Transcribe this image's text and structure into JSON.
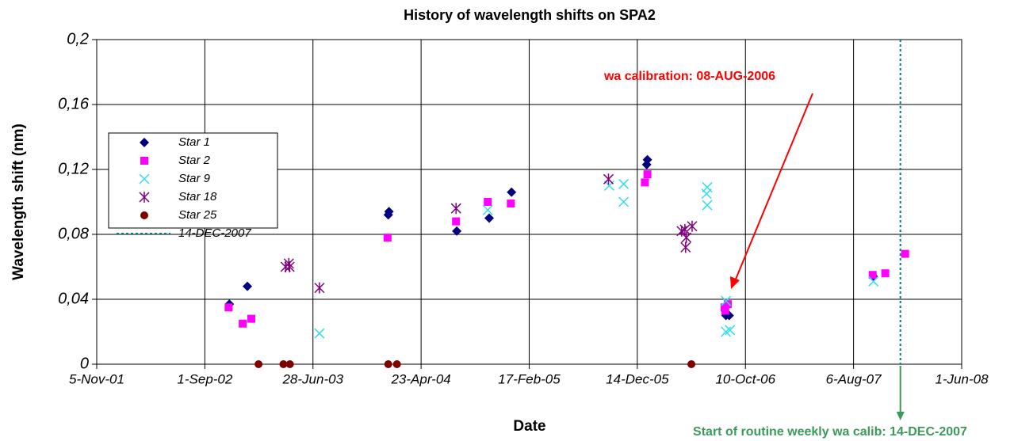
{
  "chart_data": {
    "type": "scatter",
    "title": "History of wavelength shifts on SPA2",
    "xlabel": "Date",
    "ylabel": "Wavelength shift (nm)",
    "xlim": [
      "2001-11-05",
      "2008-06-01"
    ],
    "xticks": [
      {
        "value": "2001-11-05",
        "label": "5-Nov-01"
      },
      {
        "value": "2002-09-01",
        "label": "1-Sep-02"
      },
      {
        "value": "2003-06-28",
        "label": "28-Jun-03"
      },
      {
        "value": "2004-04-23",
        "label": "23-Apr-04"
      },
      {
        "value": "2005-02-17",
        "label": "17-Feb-05"
      },
      {
        "value": "2005-12-14",
        "label": "14-Dec-05"
      },
      {
        "value": "2006-10-10",
        "label": "10-Oct-06"
      },
      {
        "value": "2007-08-06",
        "label": "6-Aug-07"
      },
      {
        "value": "2008-06-01",
        "label": "1-Jun-08"
      }
    ],
    "ylim": [
      0,
      0.2
    ],
    "yticks": [
      0,
      {
        "value": 0.04,
        "label": "0,04"
      },
      {
        "value": 0.08,
        "label": "0,08"
      },
      {
        "value": 0.12,
        "label": "0,12"
      },
      {
        "value": 0.16,
        "label": "0,16"
      },
      {
        "value": 0.2,
        "label": "0,2"
      }
    ],
    "grid": true,
    "legend": "upper left",
    "series": [
      {
        "name": "Star 1",
        "color": "#000080",
        "marker": "diamond",
        "x": [
          "2002-11-08",
          "2002-12-28",
          "2004-01-23",
          "2004-01-25",
          "2004-07-31",
          "2004-10-29",
          "2004-12-30",
          "2006-01-09",
          "2006-01-11",
          "2006-08-17",
          "2006-08-26",
          "2007-09-30"
        ],
        "values": [
          0.037,
          0.048,
          0.092,
          0.094,
          0.082,
          0.09,
          0.106,
          0.123,
          0.126,
          0.03,
          0.03,
          0.054
        ]
      },
      {
        "name": "Star 2",
        "color": "#ff00ff",
        "marker": "square",
        "x": [
          "2002-11-06",
          "2002-12-15",
          "2003-01-08",
          "2004-01-21",
          "2004-07-29",
          "2004-10-25",
          "2004-12-28",
          "2006-01-04",
          "2006-01-11",
          "2006-08-13",
          "2006-08-22",
          "2006-08-15",
          "2007-09-28",
          "2007-11-02",
          "2007-12-27"
        ],
        "values": [
          0.035,
          0.025,
          0.028,
          0.078,
          0.088,
          0.1,
          0.099,
          0.112,
          0.117,
          0.035,
          0.037,
          0.033,
          0.055,
          0.056,
          0.068
        ]
      },
      {
        "name": "Star 9",
        "color": "#33ddee",
        "marker": "x",
        "x": [
          "2003-07-16",
          "2004-10-25",
          "2005-09-27",
          "2005-11-06",
          "2005-11-06",
          "2006-06-26",
          "2006-06-24",
          "2006-06-26",
          "2006-08-17",
          "2006-08-17",
          "2006-08-28",
          "2007-09-30"
        ],
        "values": [
          0.019,
          0.095,
          0.11,
          0.111,
          0.1,
          0.109,
          0.105,
          0.098,
          0.039,
          0.02,
          0.021,
          0.051
        ]
      },
      {
        "name": "Star 18",
        "color": "#800080",
        "marker": "asterisk",
        "x": [
          "2003-04-13",
          "2003-04-22",
          "2003-04-24",
          "2003-07-16",
          "2004-07-29",
          "2005-09-25",
          "2006-04-16",
          "2006-04-25",
          "2006-04-27",
          "2006-04-29",
          "2006-05-15"
        ],
        "values": [
          0.06,
          0.062,
          0.06,
          0.047,
          0.096,
          0.114,
          0.082,
          0.083,
          0.072,
          0.078,
          0.085
        ]
      },
      {
        "name": "Star 25",
        "color": "#800000",
        "marker": "circle",
        "x": [
          "2003-01-28",
          "2003-04-07",
          "2003-04-25",
          "2004-01-23",
          "2004-02-16",
          "2006-05-13"
        ],
        "values": [
          0,
          0,
          0,
          0,
          0,
          0
        ]
      }
    ],
    "reference_line": {
      "name": "14-DEC-2007",
      "x": "2007-12-14",
      "color": "#008080"
    },
    "annotations": [
      "wa calibration: 08-AUG-2006",
      "Start of routine weekly wa calib: 14-DEC-2007"
    ]
  }
}
